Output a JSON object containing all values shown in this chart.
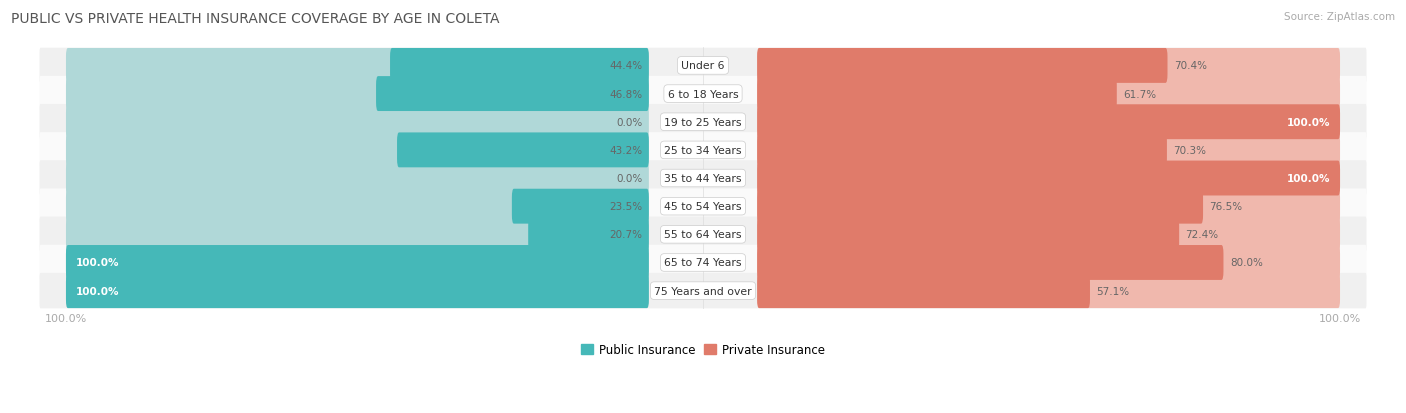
{
  "title": "PUBLIC VS PRIVATE HEALTH INSURANCE COVERAGE BY AGE IN COLETA",
  "source": "Source: ZipAtlas.com",
  "categories": [
    "Under 6",
    "6 to 18 Years",
    "19 to 25 Years",
    "25 to 34 Years",
    "35 to 44 Years",
    "45 to 54 Years",
    "55 to 64 Years",
    "65 to 74 Years",
    "75 Years and over"
  ],
  "public_values": [
    44.4,
    46.8,
    0.0,
    43.2,
    0.0,
    23.5,
    20.7,
    100.0,
    100.0
  ],
  "private_values": [
    70.4,
    61.7,
    100.0,
    70.3,
    100.0,
    76.5,
    72.4,
    80.0,
    57.1
  ],
  "public_color": "#45b8b8",
  "private_color": "#e07b6a",
  "public_color_light": "#b0d8d8",
  "private_color_light": "#f0b8ad",
  "row_bg_even": "#f0f0f0",
  "row_bg_odd": "#fafafa",
  "bg_color": "#ffffff",
  "title_color": "#555555",
  "value_color_dark": "#666666",
  "value_color_white": "#ffffff",
  "axis_label_color": "#aaaaaa",
  "legend_public": "Public Insurance",
  "legend_private": "Private Insurance",
  "max_value": 100.0
}
